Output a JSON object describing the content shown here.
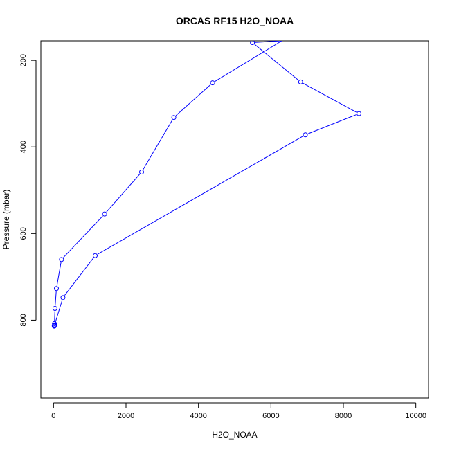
{
  "chart_data": {
    "type": "line",
    "title": "ORCAS RF15 H2O_NOAA",
    "xlabel": "H2O_NOAA",
    "ylabel": "Pressure (mbar)",
    "xlim": [
      -350,
      10350
    ],
    "ylim": [
      980,
      155
    ],
    "y_inverted": true,
    "grid": false,
    "x_ticks": [
      0,
      2000,
      4000,
      6000,
      8000,
      10000
    ],
    "y_ticks": [
      200,
      400,
      600,
      800
    ],
    "series": [
      {
        "color": "#0000ff",
        "marker": "open-circle",
        "points": [
          {
            "x": 20,
            "y": 814
          },
          {
            "x": 25,
            "y": 812
          },
          {
            "x": 30,
            "y": 811
          },
          {
            "x": 25,
            "y": 808
          },
          {
            "x": 40,
            "y": 773
          },
          {
            "x": 80,
            "y": 727
          },
          {
            "x": 220,
            "y": 660
          },
          {
            "x": 1410,
            "y": 555
          },
          {
            "x": 2430,
            "y": 458
          },
          {
            "x": 3320,
            "y": 332
          },
          {
            "x": 4390,
            "y": 252
          },
          {
            "x": 6300,
            "y": 155
          },
          {
            "x": 5490,
            "y": 159
          },
          {
            "x": 6820,
            "y": 250
          },
          {
            "x": 8430,
            "y": 323
          },
          {
            "x": 6950,
            "y": 372
          },
          {
            "x": 1150,
            "y": 651
          },
          {
            "x": 260,
            "y": 748
          },
          {
            "x": 25,
            "y": 812
          },
          {
            "x": 20,
            "y": 813
          }
        ],
        "marked": [
          true,
          true,
          true,
          true,
          true,
          true,
          true,
          true,
          true,
          true,
          true,
          false,
          true,
          true,
          true,
          true,
          true,
          true,
          true,
          true
        ]
      }
    ]
  }
}
